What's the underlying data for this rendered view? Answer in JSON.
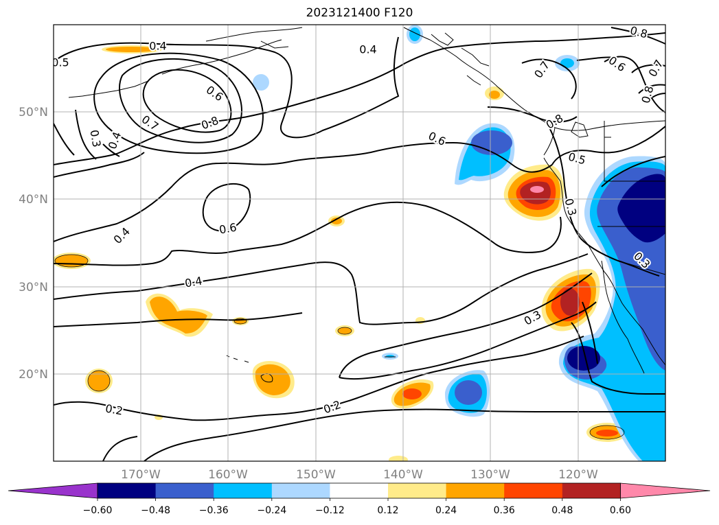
{
  "title": "2023121400 F120",
  "map": {
    "lon_labels": [
      "170°W",
      "160°W",
      "150°W",
      "140°W",
      "130°W",
      "120°W"
    ],
    "lat_labels": [
      "20°N",
      "30°N",
      "40°N",
      "50°N"
    ],
    "contour_labels": [
      "0.4",
      "0.4",
      "0.5",
      "0.6",
      "0.7",
      "0.8",
      "0.3",
      "0.4",
      "0.6",
      "0.6",
      "0.4",
      "0.4",
      "0.3",
      "0.2",
      "0.2",
      "0.3",
      "0.5",
      "0.3",
      "0.6",
      "0.7",
      "0.8",
      "0.8",
      "0.7",
      "0.8"
    ],
    "colors": {
      "land_outline": "#000000",
      "grid": "#b0b0b0",
      "label_gray": "#808080"
    }
  },
  "colorbar": {
    "ticks": [
      "−0.60",
      "−0.48",
      "−0.36",
      "−0.24",
      "−0.12",
      "0.12",
      "0.24",
      "0.36",
      "0.48",
      "0.60"
    ],
    "colors": [
      "#9933cc",
      "#000080",
      "#3a5fcd",
      "#00bfff",
      "#add8ff",
      "#ffffff",
      "#ffeb8a",
      "#ffa500",
      "#ff4500",
      "#b22222",
      "#ff88aa"
    ]
  }
}
